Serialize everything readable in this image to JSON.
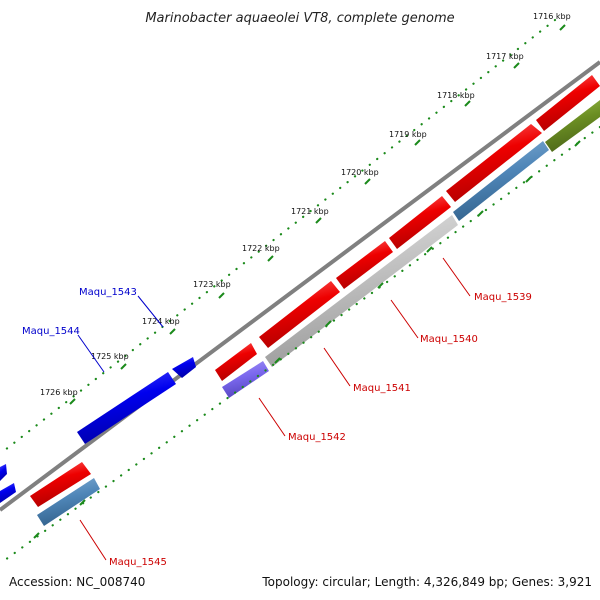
{
  "title": "Marinobacter aquaeolei VT8, complete genome",
  "accession": "Accession: NC_008740",
  "summary": "Topology: circular; Length: 4,326,849 bp; Genes: 3,921",
  "colors": {
    "forward_cds": "#ee0000",
    "reverse_cds": "#0000ee",
    "hypothetical": "#bdbdbd",
    "rna_blue": "#4f86b8",
    "purple": "#7b68ee",
    "olive": "#6b8e23",
    "backbone": "#808080",
    "tick": "#1b8a1b",
    "label_red": "#cc0000",
    "label_blue": "#0000cc"
  },
  "ticks": [
    {
      "label": "1716 kbp"
    },
    {
      "label": "1717 kbp"
    },
    {
      "label": "1718 kbp"
    },
    {
      "label": "1719 kbp"
    },
    {
      "label": "1720 kbp"
    },
    {
      "label": "1721 kbp"
    },
    {
      "label": "1722 kbp"
    },
    {
      "label": "1723 kbp"
    },
    {
      "label": "1724 kbp"
    },
    {
      "label": "1725 kbp"
    },
    {
      "label": "1726 kbp"
    }
  ],
  "gene_labels": [
    {
      "text": "Maqu_1539",
      "color": "red"
    },
    {
      "text": "Maqu_1540",
      "color": "red"
    },
    {
      "text": "Maqu_1541",
      "color": "red"
    },
    {
      "text": "Maqu_1542",
      "color": "red"
    },
    {
      "text": "Maqu_1545",
      "color": "red"
    },
    {
      "text": "Maqu_1543",
      "color": "blue"
    },
    {
      "text": "Maqu_1544",
      "color": "blue"
    }
  ]
}
